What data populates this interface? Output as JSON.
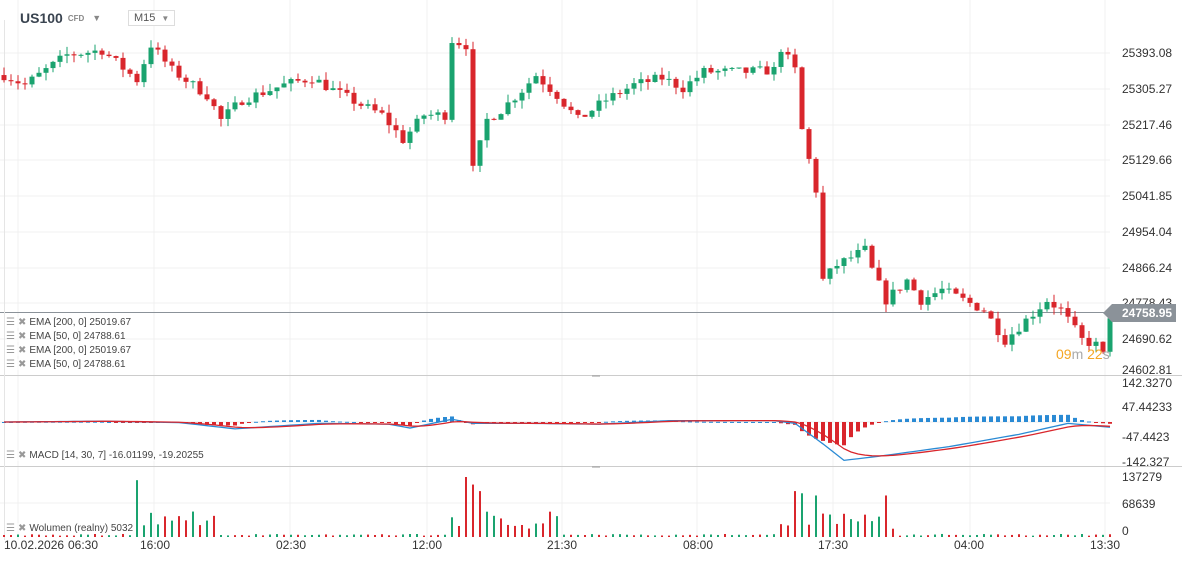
{
  "header": {
    "symbol": "US100",
    "type": "CFD",
    "timeframe": "M15"
  },
  "legends": {
    "ema": [
      "EMA [200, 0] 25019.67",
      "EMA [50, 0] 24788.61",
      "EMA [200, 0] 25019.67",
      "EMA [50, 0] 24788.61"
    ],
    "macd": "MACD [14, 30, 7] -16.01199, -19.20255",
    "volume": "Wolumen (realny) 5032"
  },
  "price_axis": [
    "25393.08",
    "25305.27",
    "25217.46",
    "25129.66",
    "25041.85",
    "24954.04",
    "24866.24",
    "24778.43",
    "24690.62",
    "24602.81"
  ],
  "macd_axis": [
    "142.3270",
    "47.44233",
    "-47.4423",
    "-142.327"
  ],
  "volume_axis": [
    "137279",
    "68639",
    "0"
  ],
  "current_price": "24758.95",
  "timer": {
    "minutes": "09",
    "m": "m",
    "seconds": "22",
    "s": "s"
  },
  "time_axis": [
    "10.02.2026",
    "06:30",
    "16:00",
    "02:30",
    "12:00",
    "21:30",
    "08:00",
    "17:30",
    "04:00",
    "13:30"
  ],
  "colors": {
    "up": "#1aa36f",
    "down": "#d9262c",
    "macd": "#2a8ad4",
    "signal": "#d9262c"
  },
  "chart_data": {
    "type": "candlestick",
    "price_keypoints": [
      [
        0,
        25339
      ],
      [
        3,
        25315
      ],
      [
        9,
        25388
      ],
      [
        14,
        25400
      ],
      [
        19,
        25327
      ],
      [
        21,
        25413
      ],
      [
        24,
        25351
      ],
      [
        29,
        25290
      ],
      [
        31,
        25229
      ],
      [
        34,
        25278
      ],
      [
        40,
        25315
      ],
      [
        44,
        25332
      ],
      [
        47,
        25302
      ],
      [
        51,
        25266
      ],
      [
        54,
        25241
      ],
      [
        57,
        25180
      ],
      [
        60,
        25241
      ],
      [
        63,
        25241
      ],
      [
        64,
        25425
      ],
      [
        66,
        25413
      ],
      [
        67,
        25106
      ],
      [
        69,
        25229
      ],
      [
        71,
        25253
      ],
      [
        74,
        25302
      ],
      [
        76,
        25339
      ],
      [
        79,
        25290
      ],
      [
        82,
        25229
      ],
      [
        86,
        25278
      ],
      [
        90,
        25315
      ],
      [
        94,
        25332
      ],
      [
        97,
        25307
      ],
      [
        100,
        25347
      ],
      [
        106,
        25347
      ],
      [
        110,
        25351
      ],
      [
        111,
        25405
      ],
      [
        113,
        25351
      ],
      [
        114,
        25204
      ],
      [
        116,
        25057
      ],
      [
        117,
        24836
      ],
      [
        119,
        24873
      ],
      [
        123,
        24910
      ],
      [
        124,
        24861
      ],
      [
        126,
        24787
      ],
      [
        129,
        24836
      ],
      [
        131,
        24787
      ],
      [
        134,
        24812
      ],
      [
        137,
        24787
      ],
      [
        140,
        24763
      ],
      [
        143,
        24689
      ],
      [
        146,
        24738
      ],
      [
        149,
        24787
      ],
      [
        151,
        24763
      ],
      [
        154,
        24689
      ],
      [
        156,
        24677
      ],
      [
        157,
        24652
      ],
      [
        158,
        24750
      ]
    ],
    "macd_keypoints": [
      [
        0,
        0
      ],
      [
        14,
        3
      ],
      [
        25,
        -2
      ],
      [
        33,
        -25
      ],
      [
        45,
        -5
      ],
      [
        55,
        -8
      ],
      [
        58,
        -22
      ],
      [
        64,
        10
      ],
      [
        67,
        -5
      ],
      [
        75,
        -5
      ],
      [
        85,
        -8
      ],
      [
        95,
        5
      ],
      [
        110,
        5
      ],
      [
        113,
        -5
      ],
      [
        117,
        -80
      ],
      [
        120,
        -140
      ],
      [
        125,
        -125
      ],
      [
        135,
        -90
      ],
      [
        145,
        -45
      ],
      [
        152,
        -5
      ],
      [
        158,
        -19
      ]
    ],
    "volume_spikes": [
      [
        19,
        130000
      ],
      [
        66,
        137279
      ],
      [
        67,
        120000
      ],
      [
        68,
        105000
      ],
      [
        113,
        105000
      ],
      [
        114,
        100000
      ],
      [
        116,
        95000
      ],
      [
        126,
        95000
      ]
    ]
  }
}
